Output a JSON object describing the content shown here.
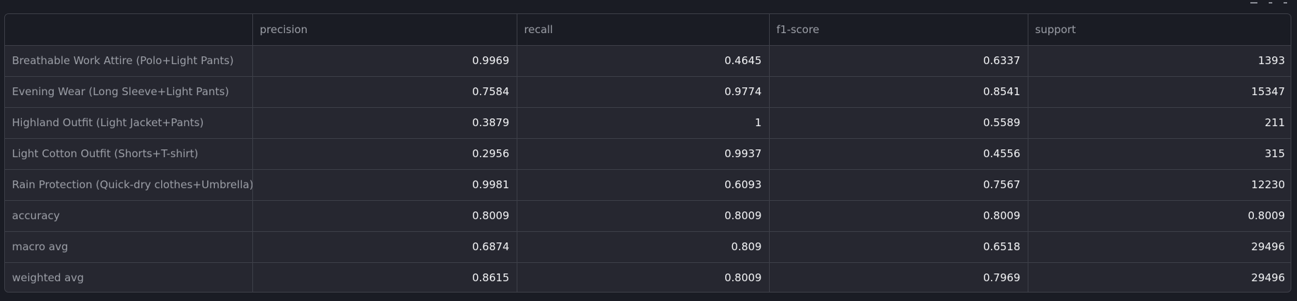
{
  "table": {
    "columns": [
      "",
      "precision",
      "recall",
      "f1-score",
      "support"
    ],
    "rows": [
      {
        "label": "Breathable Work Attire (Polo+Light Pants)",
        "values": [
          "0.9969",
          "0.4645",
          "0.6337",
          "1393"
        ]
      },
      {
        "label": "Evening Wear (Long Sleeve+Light Pants)",
        "values": [
          "0.7584",
          "0.9774",
          "0.8541",
          "15347"
        ]
      },
      {
        "label": "Highland Outfit (Light Jacket+Pants)",
        "values": [
          "0.3879",
          "1",
          "0.5589",
          "211"
        ]
      },
      {
        "label": "Light Cotton Outfit (Shorts+T-shirt)",
        "values": [
          "0.2956",
          "0.9937",
          "0.4556",
          "315"
        ]
      },
      {
        "label": "Rain Protection (Quick-dry clothes+Umbrella)",
        "values": [
          "0.9981",
          "0.6093",
          "0.7567",
          "12230"
        ]
      },
      {
        "label": "accuracy",
        "values": [
          "0.8009",
          "0.8009",
          "0.8009",
          "0.8009"
        ]
      },
      {
        "label": "macro avg",
        "values": [
          "0.6874",
          "0.809",
          "0.6518",
          "29496"
        ]
      },
      {
        "label": "weighted avg",
        "values": [
          "0.8615",
          "0.8009",
          "0.7969",
          "29496"
        ]
      }
    ]
  },
  "toolbar": {
    "icons": [
      "download-icon",
      "search-icon",
      "fullscreen-icon"
    ]
  },
  "colors": {
    "background": "#1a1c24",
    "table_body": "#262730",
    "grid": "#3d3f48",
    "header_text": "#9b9ea6",
    "value_text": "#f4f5f7"
  }
}
